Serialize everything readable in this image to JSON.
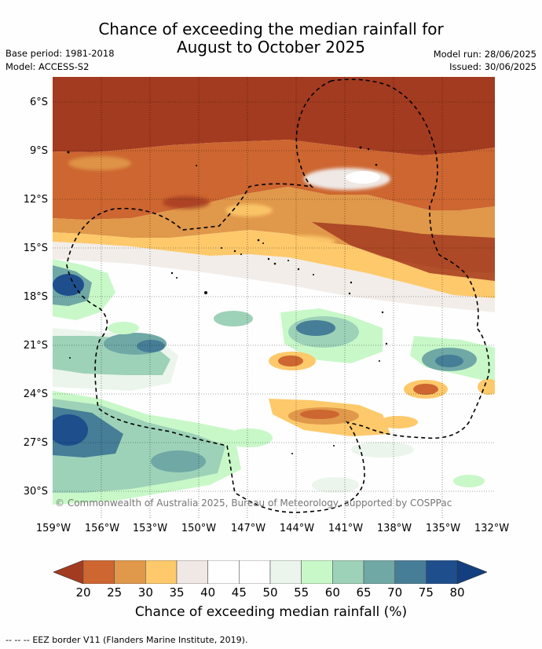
{
  "header": {
    "title_line1": "Chance of exceeding the median rainfall for",
    "title_line2": "August to October 2025",
    "base_period": "Base period: 1981-2018",
    "model": "Model: ACCESS-S2",
    "model_run": "Model run: 28/06/2025",
    "issued": "Issued: 30/06/2025"
  },
  "map": {
    "lat_labels": [
      "6°S",
      "9°S",
      "12°S",
      "15°S",
      "18°S",
      "21°S",
      "24°S",
      "27°S",
      "30°S"
    ],
    "lon_labels": [
      "159°W",
      "156°W",
      "153°W",
      "150°W",
      "147°W",
      "144°W",
      "141°W",
      "138°W",
      "135°W",
      "132°W"
    ],
    "credit": "© Commonwealth of Australia 2025, Bureau of Meteorology, supported by COSPPac"
  },
  "colorbar": {
    "ticks": [
      "20",
      "25",
      "30",
      "35",
      "40",
      "45",
      "50",
      "55",
      "60",
      "65",
      "70",
      "75",
      "80"
    ],
    "colors": [
      "#a33b20",
      "#cd6630",
      "#e0984a",
      "#fdc96b",
      "#efe8e4",
      "#ffffff",
      "#ffffff",
      "#ebf5eb",
      "#c8f8c8",
      "#9dd2b8",
      "#6fa8a5",
      "#467d97",
      "#1e4f8c",
      "#133f80"
    ],
    "label": "Chance of exceeding median rainfall (%)"
  },
  "footer": {
    "legend_marker": "-- -- --",
    "text": "EEZ border V11 (Flanders Marine Institute, 2019)."
  }
}
